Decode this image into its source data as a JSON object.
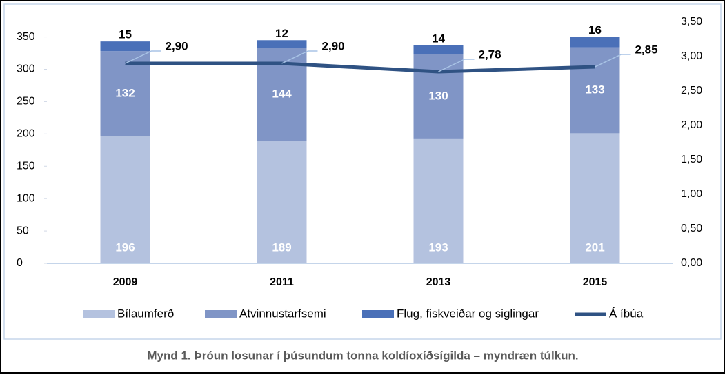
{
  "chart_data": {
    "type": "bar",
    "stacked": true,
    "caption": "Mynd 1. Þróun losunar í þúsundum tonna koldíoxíðsígilda – myndræn túlkun.",
    "categories": [
      "2009",
      "2011",
      "2013",
      "2015"
    ],
    "series": [
      {
        "name": "Bílaumferð",
        "color": "#b4c2df",
        "values": [
          196,
          189,
          193,
          201
        ]
      },
      {
        "name": "Atvinnustarfsemi",
        "color": "#8095c6",
        "values": [
          132,
          144,
          130,
          133
        ]
      },
      {
        "name": "Flug, fiskveiðar og siglingar",
        "color": "#4a70b8",
        "values": [
          15,
          12,
          14,
          16
        ]
      },
      {
        "name": "Á íbúa",
        "type": "line",
        "axis": "y2",
        "color": "#2f5283",
        "values": [
          2.9,
          2.9,
          2.78,
          2.85
        ],
        "value_labels": [
          "2,90",
          "2,90",
          "2,78",
          "2,85"
        ]
      }
    ],
    "ylim": [
      0,
      373
    ],
    "yticks": [
      0,
      50,
      100,
      150,
      200,
      250,
      300,
      350
    ],
    "y2lim": [
      0,
      3.5
    ],
    "y2ticks": [
      {
        "value": 0,
        "label": "0,00"
      },
      {
        "value": 0.5,
        "label": "0,50"
      },
      {
        "value": 1,
        "label": "1,00"
      },
      {
        "value": 1.5,
        "label": "1,50"
      },
      {
        "value": 2,
        "label": "2,00"
      },
      {
        "value": 2.5,
        "label": "2,50"
      },
      {
        "value": 3,
        "label": "3,00"
      },
      {
        "value": 3.5,
        "label": "3,50"
      }
    ],
    "legend": "bottom",
    "grid": false
  }
}
